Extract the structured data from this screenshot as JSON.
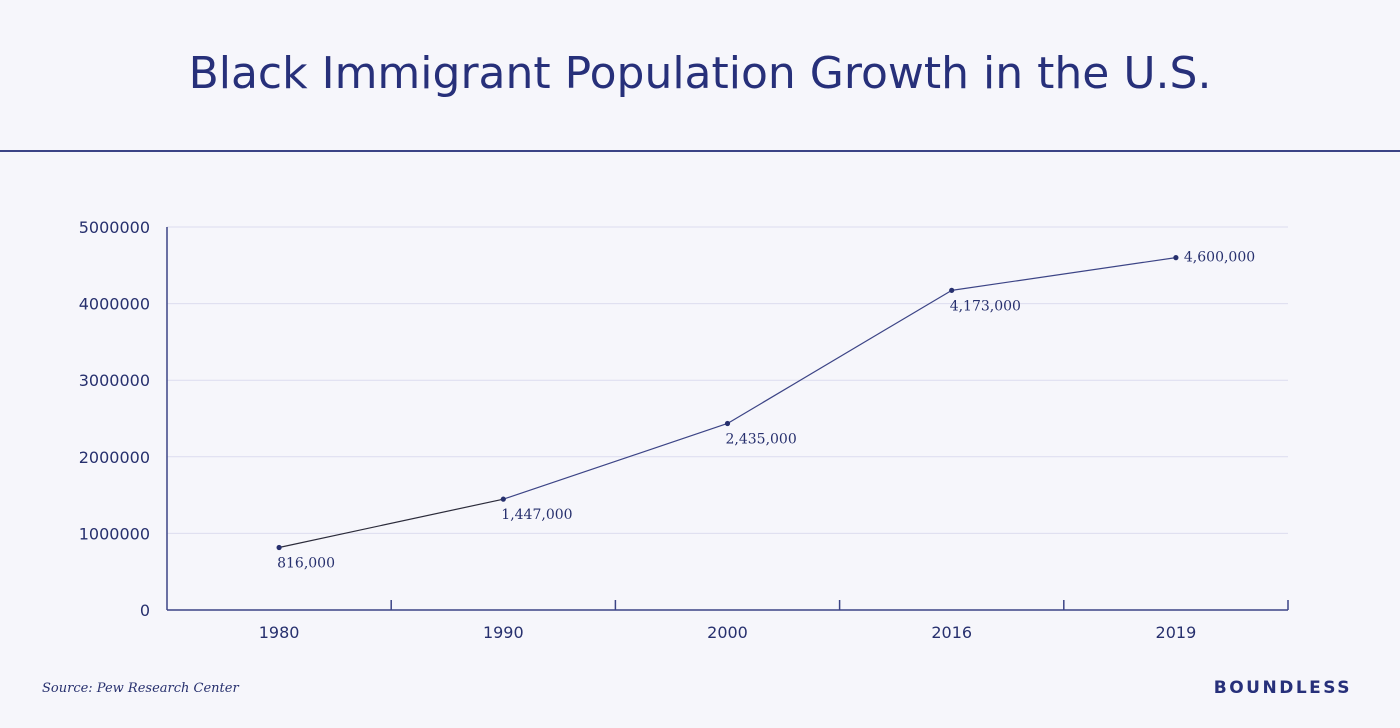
{
  "title": "Black Immigrant Population Growth in the U.S.",
  "source": "Source: Pew Research Center",
  "brand": "BOUNDLESS",
  "colors": {
    "text": "#27306e",
    "line": "#3c4486",
    "grid": "#dcdcef",
    "background": "#f6f6fb"
  },
  "chart_data": {
    "type": "line",
    "title": "Black Immigrant Population Growth in the U.S.",
    "xlabel": "",
    "ylabel": "",
    "categories": [
      "1980",
      "1990",
      "2000",
      "2016",
      "2019"
    ],
    "series": [
      {
        "values": [
          816000,
          1447000,
          2435000,
          4173000,
          4600000
        ],
        "labels": [
          "816,000",
          "1,447,000",
          "2,435,000",
          "4,173,000",
          "4,600,000"
        ]
      }
    ],
    "yticks": [
      "0",
      "1000000",
      "2000000",
      "3000000",
      "4000000",
      "5000000"
    ],
    "ylim": [
      0,
      5000000
    ],
    "grid": true,
    "legend": "none"
  }
}
